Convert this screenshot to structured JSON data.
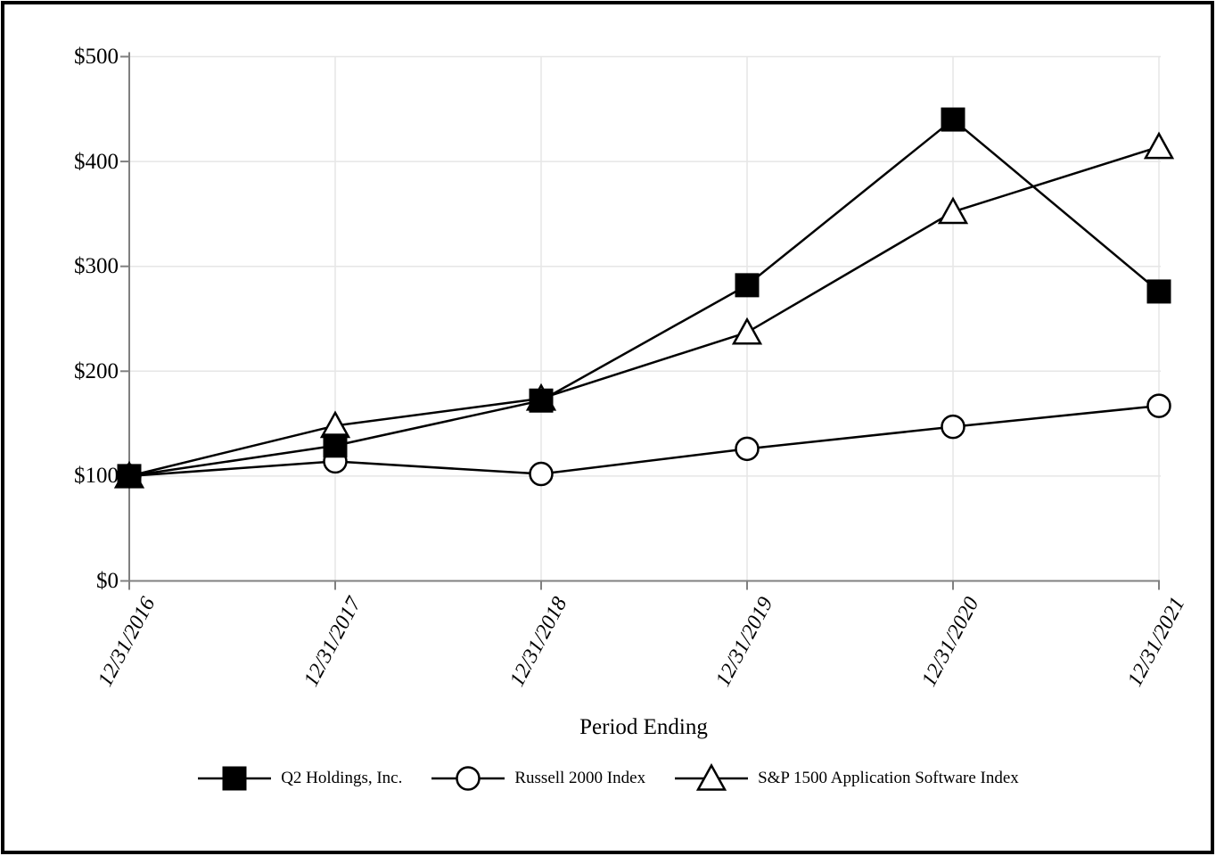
{
  "chart_data": {
    "type": "line",
    "title": "",
    "xlabel": "Period Ending",
    "ylabel": "",
    "categories": [
      "12/31/2016",
      "12/31/2017",
      "12/31/2018",
      "12/31/2019",
      "12/31/2020",
      "12/31/2021"
    ],
    "y_ticks": [
      0,
      100,
      200,
      300,
      400,
      500
    ],
    "y_tick_labels": [
      "$0",
      "$100",
      "$200",
      "$300",
      "$400",
      "$500"
    ],
    "ylim": [
      0,
      500
    ],
    "grid": true,
    "legend_position": "bottom",
    "series": [
      {
        "name": "Q2 Holdings, Inc.",
        "marker": "filled-square",
        "values": [
          100,
          129,
          172,
          282,
          440,
          276
        ]
      },
      {
        "name": "Russell 2000 Index",
        "marker": "open-circle",
        "values": [
          100,
          114,
          102,
          126,
          147,
          167
        ]
      },
      {
        "name": "S&P 1500 Application Software Index",
        "marker": "open-triangle",
        "values": [
          100,
          148,
          174,
          237,
          352,
          414
        ]
      }
    ],
    "colors": {
      "series": "#000000",
      "axis": "#808080",
      "grid": "#e6e6e6",
      "background": "#ffffff",
      "frame_border": "#000000",
      "text": "#000000"
    }
  }
}
